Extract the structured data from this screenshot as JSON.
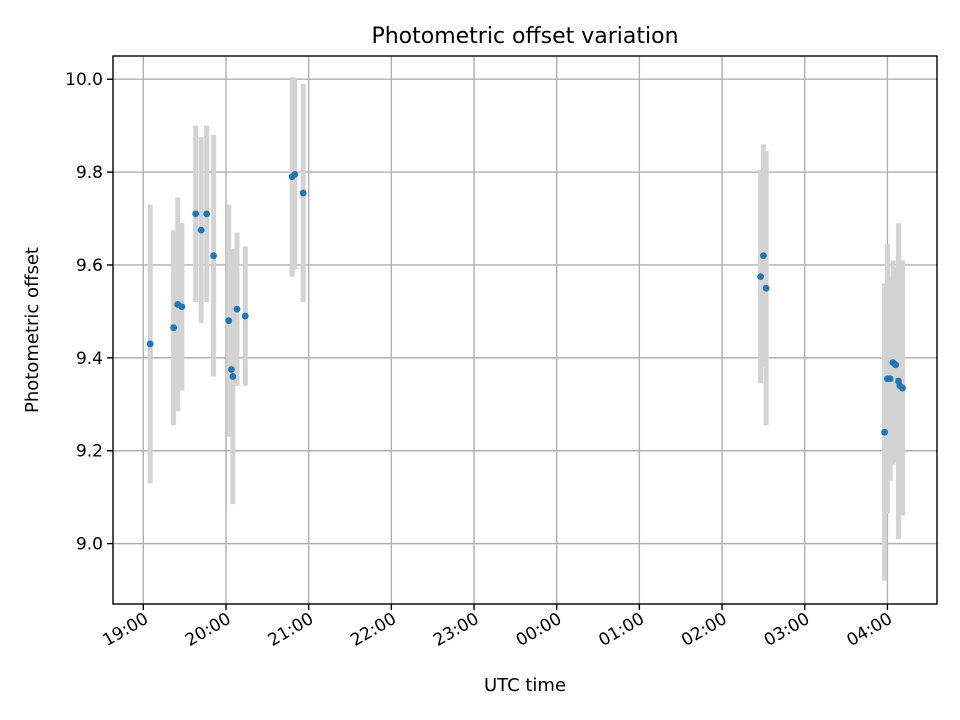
{
  "chart_data": {
    "type": "scatter",
    "title": "Photometric offset variation",
    "xlabel": "UTC time",
    "ylabel": "Photometric offset",
    "x_unit": "UTC time (HH:MM)",
    "xlim": [
      "18:38",
      "04:36"
    ],
    "ylim": [
      8.87,
      10.05
    ],
    "grid": true,
    "xticks": [
      "19:00",
      "20:00",
      "21:00",
      "22:00",
      "23:00",
      "00:00",
      "01:00",
      "02:00",
      "03:00",
      "04:00"
    ],
    "yticks": [
      "9.0",
      "9.2",
      "9.4",
      "9.6",
      "9.8",
      "10.0"
    ],
    "marker_color": "#1f77b4",
    "errorbar_color": "#d3d3d3",
    "points": [
      {
        "x": "19:05",
        "y": 9.43,
        "yerr": 0.3
      },
      {
        "x": "19:22",
        "y": 9.465,
        "yerr": 0.21
      },
      {
        "x": "19:25",
        "y": 9.515,
        "yerr": 0.23
      },
      {
        "x": "19:28",
        "y": 9.51,
        "yerr": 0.18
      },
      {
        "x": "19:38",
        "y": 9.71,
        "yerr": 0.19
      },
      {
        "x": "19:42",
        "y": 9.675,
        "yerr": 0.2
      },
      {
        "x": "19:46",
        "y": 9.71,
        "yerr": 0.19
      },
      {
        "x": "19:51",
        "y": 9.62,
        "yerr": 0.26
      },
      {
        "x": "20:02",
        "y": 9.48,
        "yerr": 0.25
      },
      {
        "x": "20:04",
        "y": 9.375,
        "yerr": 0.13
      },
      {
        "x": "20:05",
        "y": 9.36,
        "yerr": 0.275
      },
      {
        "x": "20:08",
        "y": 9.505,
        "yerr": 0.165
      },
      {
        "x": "20:14",
        "y": 9.49,
        "yerr": 0.15
      },
      {
        "x": "20:48",
        "y": 9.79,
        "yerr": 0.215
      },
      {
        "x": "20:50",
        "y": 9.795,
        "yerr": 0.205
      },
      {
        "x": "20:56",
        "y": 9.755,
        "yerr": 0.235
      },
      {
        "x": "02:28",
        "y": 9.575,
        "yerr": 0.23
      },
      {
        "x": "02:30",
        "y": 9.62,
        "yerr": 0.24
      },
      {
        "x": "02:32",
        "y": 9.55,
        "yerr": 0.295
      },
      {
        "x": "03:58",
        "y": 9.24,
        "yerr": 0.32
      },
      {
        "x": "04:00",
        "y": 9.355,
        "yerr": 0.29
      },
      {
        "x": "04:02",
        "y": 9.355,
        "yerr": 0.22
      },
      {
        "x": "04:04",
        "y": 9.39,
        "yerr": 0.22
      },
      {
        "x": "04:06",
        "y": 9.385,
        "yerr": 0.21
      },
      {
        "x": "04:08",
        "y": 9.35,
        "yerr": 0.34
      },
      {
        "x": "04:09",
        "y": 9.34,
        "yerr": 0.27
      },
      {
        "x": "04:11",
        "y": 9.335,
        "yerr": 0.275
      }
    ]
  }
}
